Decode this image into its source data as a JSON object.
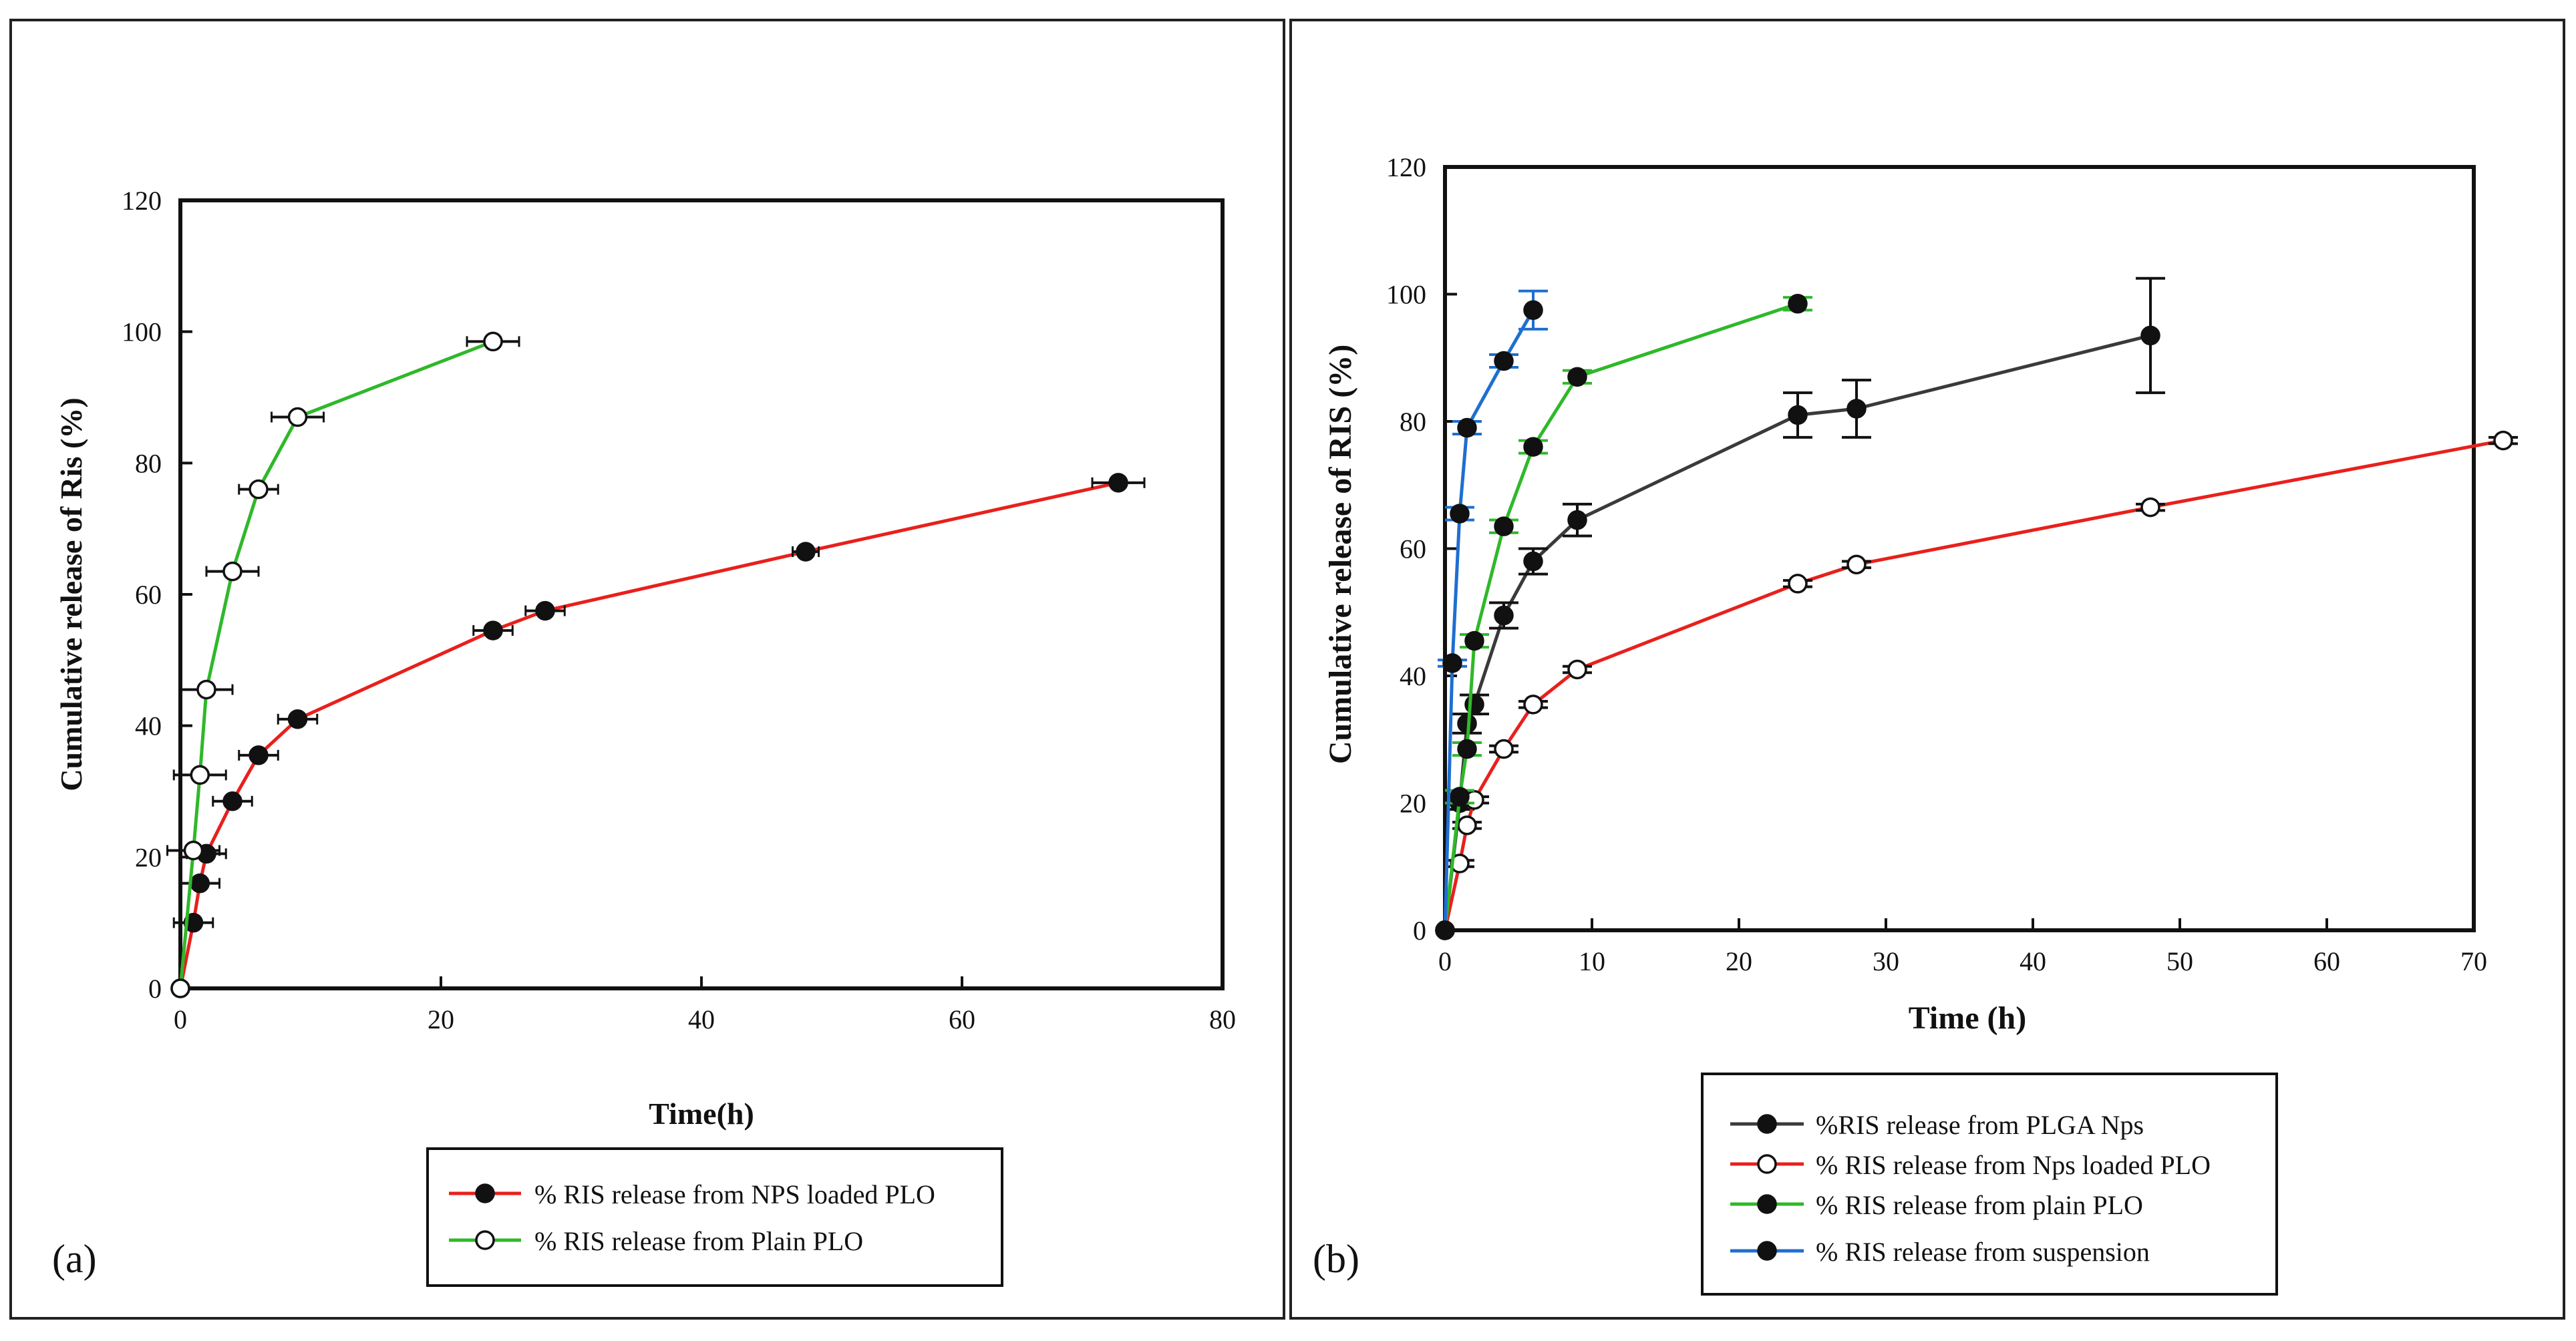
{
  "colors": {
    "red": "#e8201c",
    "green": "#2fb82a",
    "blue": "#1e6fd0",
    "black": "#111111",
    "gray": "#3a3a3a"
  },
  "chart_data": [
    {
      "panel_label": "(a)",
      "type": "line",
      "title": "",
      "xlabel": "Time(h)",
      "ylabel": "Cumulative release of Ris (%)",
      "xlim": [
        0,
        80
      ],
      "ylim": [
        0,
        120
      ],
      "xticks": [
        0,
        20,
        40,
        60,
        80
      ],
      "yticks": [
        0,
        20,
        40,
        60,
        80,
        100,
        120
      ],
      "grid": false,
      "legend_position": "bottom-center",
      "annotations": [],
      "series": [
        {
          "name": "% RIS release from NPS loaded PLO",
          "color_key": "red",
          "marker": "filled",
          "x": [
            0,
            1,
            1.5,
            2,
            4,
            6,
            9,
            24,
            28,
            48,
            72
          ],
          "y": [
            0,
            10,
            16,
            20.5,
            28.5,
            35.5,
            41,
            54.5,
            57.5,
            66.5,
            77
          ],
          "x_err": [
            0,
            1.5,
            1.5,
            1.5,
            1.5,
            1.5,
            1.5,
            1.5,
            1.5,
            1.0,
            2.0
          ]
        },
        {
          "name": "% RIS release from  Plain PLO",
          "color_key": "green",
          "marker": "open",
          "x": [
            0,
            1,
            1.5,
            2,
            4,
            6,
            9,
            24
          ],
          "y": [
            0,
            21,
            32.5,
            45.5,
            63.5,
            76,
            87,
            98.5
          ],
          "x_err": [
            0,
            2,
            2,
            2,
            2,
            1.5,
            2,
            2
          ]
        }
      ]
    },
    {
      "panel_label": "(b)",
      "type": "line",
      "title": "",
      "xlabel": "Time (h)",
      "ylabel": "Cumulative  release  of  RIS (%)",
      "xlim": [
        0,
        70
      ],
      "ylim": [
        0,
        120
      ],
      "xticks": [
        0,
        10,
        20,
        30,
        40,
        50,
        60,
        70
      ],
      "yticks": [
        0,
        20,
        40,
        60,
        80,
        100,
        120
      ],
      "grid": false,
      "legend_position": "bottom-center",
      "series": [
        {
          "name": "%RIS release from PLGA Nps",
          "color_key": "gray",
          "marker": "filled",
          "x": [
            0,
            1,
            1.5,
            2,
            4,
            6,
            9,
            24,
            28,
            48
          ],
          "y": [
            0,
            20,
            32.5,
            35.5,
            49.5,
            58,
            64.5,
            81,
            82,
            93.5
          ],
          "y_err": [
            0,
            1,
            1.5,
            1.5,
            2,
            2,
            2.5,
            3.5,
            4.5,
            9
          ]
        },
        {
          "name": "% RIS release from Nps loaded PLO",
          "color_key": "red",
          "marker": "open",
          "x": [
            0,
            1,
            1.5,
            2,
            4,
            6,
            9,
            24,
            28,
            48,
            72
          ],
          "y": [
            0,
            10.5,
            16.5,
            20.5,
            28.5,
            35.5,
            41,
            54.5,
            57.5,
            66.5,
            77
          ],
          "y_err": [
            0,
            0.5,
            0.5,
            0.5,
            0.5,
            0.5,
            0.5,
            0.5,
            0.5,
            0.5,
            0.5
          ]
        },
        {
          "name": "% RIS release from plain PLO",
          "color_key": "green",
          "marker": "filled",
          "x": [
            0,
            1,
            1.5,
            2,
            4,
            6,
            9,
            24
          ],
          "y": [
            0,
            21,
            28.5,
            45.5,
            63.5,
            76,
            87,
            98.5
          ],
          "y_err": [
            0,
            1,
            1,
            1,
            1,
            1,
            1,
            1
          ]
        },
        {
          "name": "% RIS release from suspension",
          "color_key": "blue",
          "marker": "filled",
          "x": [
            0,
            0.5,
            1,
            1.5,
            4,
            6
          ],
          "y": [
            0,
            42,
            65.5,
            79,
            89.5,
            97.5
          ],
          "y_err": [
            0,
            0.5,
            1,
            1,
            1,
            3
          ]
        }
      ]
    }
  ]
}
